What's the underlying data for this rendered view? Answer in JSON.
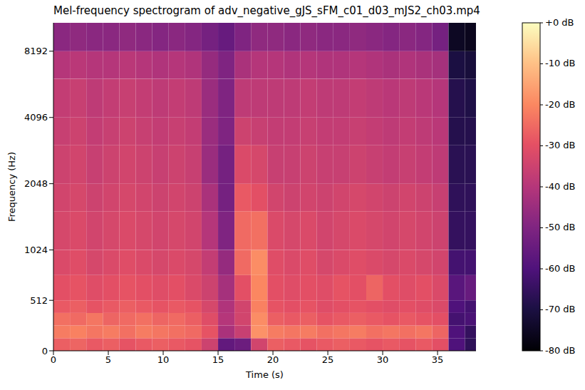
{
  "chart_data": {
    "type": "heatmap",
    "title": "Mel-frequency spectrogram of adv_negative_gJS_sFM_c01_d03_mJS2_ch03.mp4",
    "x_label": "Time (s)",
    "y_label": "Frequency (Hz)",
    "xlim": [
      0,
      38.5
    ],
    "xticks": [
      0,
      5,
      10,
      15,
      20,
      25,
      30,
      35
    ],
    "ylim": [
      0,
      11025
    ],
    "yticks": [
      0,
      512,
      1024,
      2048,
      4096,
      8192
    ],
    "x_edges": [
      0,
      1.5,
      3,
      4.5,
      6,
      7.5,
      9,
      10.5,
      12,
      13.5,
      15,
      16.5,
      18,
      19.5,
      21,
      22.5,
      24,
      25.5,
      27,
      28.5,
      30,
      31.5,
      33,
      34.5,
      36,
      37.5,
      38.5
    ],
    "y_edges": [
      0,
      128,
      256,
      384,
      512,
      768,
      1024,
      1536,
      2048,
      3072,
      4096,
      6144,
      8192,
      11025
    ],
    "cells": [
      [
        -27,
        -26,
        -28,
        -27,
        -29,
        -28,
        -27,
        -28,
        -29,
        -35,
        -56,
        -54,
        -34,
        -27,
        -28,
        -29,
        -28,
        -27,
        -28,
        -29,
        -28,
        -29,
        -28,
        -30,
        -60,
        -66
      ],
      [
        -22,
        -21,
        -23,
        -22,
        -24,
        -22,
        -23,
        -24,
        -25,
        -29,
        -42,
        -36,
        -18,
        -22,
        -23,
        -22,
        -24,
        -23,
        -22,
        -24,
        -23,
        -24,
        -23,
        -26,
        -60,
        -65
      ],
      [
        -24,
        -25,
        -23,
        -26,
        -25,
        -24,
        -26,
        -25,
        -27,
        -31,
        -40,
        -34,
        -19,
        -27,
        -28,
        -27,
        -29,
        -28,
        -27,
        -28,
        -29,
        -28,
        -29,
        -30,
        -62,
        -61
      ],
      [
        -28,
        -27,
        -29,
        -28,
        -27,
        -28,
        -29,
        -28,
        -29,
        -33,
        -41,
        -34,
        -21,
        -29,
        -30,
        -29,
        -31,
        -30,
        -29,
        -30,
        -31,
        -30,
        -31,
        -32,
        -60,
        -62
      ],
      [
        -30,
        -29,
        -31,
        -30,
        -29,
        -30,
        -31,
        -30,
        -32,
        -35,
        -43,
        -30,
        -20,
        -30,
        -31,
        -30,
        -31,
        -29,
        -30,
        -26,
        -30,
        -31,
        -30,
        -32,
        -58,
        -55
      ],
      [
        -32,
        -31,
        -33,
        -32,
        -31,
        -32,
        -33,
        -32,
        -33,
        -37,
        -46,
        -25,
        -19,
        -31,
        -32,
        -31,
        -33,
        -32,
        -31,
        -32,
        -33,
        -32,
        -33,
        -34,
        -62,
        -62
      ],
      [
        -33,
        -32,
        -34,
        -33,
        -32,
        -33,
        -34,
        -33,
        -34,
        -40,
        -50,
        -25,
        -24,
        -32,
        -33,
        -32,
        -34,
        -33,
        -32,
        -33,
        -34,
        -33,
        -34,
        -35,
        -65,
        -65
      ],
      [
        -34,
        -33,
        -35,
        -34,
        -33,
        -34,
        -35,
        -34,
        -35,
        -42,
        -52,
        -28,
        -30,
        -34,
        -35,
        -34,
        -35,
        -34,
        -33,
        -34,
        -35,
        -34,
        -35,
        -36,
        -66,
        -66
      ],
      [
        -35,
        -34,
        -36,
        -35,
        -34,
        -35,
        -36,
        -35,
        -36,
        -45,
        -52,
        -32,
        -33,
        -36,
        -36,
        -35,
        -36,
        -36,
        -35,
        -36,
        -37,
        -36,
        -37,
        -38,
        -67,
        -67
      ],
      [
        -36,
        -35,
        -37,
        -36,
        -35,
        -36,
        -37,
        -36,
        -37,
        -45,
        -50,
        -35,
        -36,
        -37,
        -37,
        -36,
        -37,
        -37,
        -36,
        -37,
        -38,
        -37,
        -38,
        -39,
        -68,
        -68
      ],
      [
        -37,
        -36,
        -38,
        -37,
        -36,
        -37,
        -38,
        -37,
        -38,
        -45,
        -50,
        -38,
        -38,
        -38,
        -38,
        -37,
        -38,
        -38,
        -37,
        -38,
        -39,
        -38,
        -39,
        -40,
        -68,
        -69
      ],
      [
        -40,
        -39,
        -40,
        -40,
        -39,
        -40,
        -41,
        -40,
        -41,
        -46,
        -50,
        -42,
        -40,
        -40,
        -41,
        -40,
        -41,
        -41,
        -40,
        -41,
        -42,
        -41,
        -42,
        -43,
        -70,
        -71
      ],
      [
        -48,
        -47,
        -48,
        -48,
        -47,
        -48,
        -49,
        -48,
        -49,
        -52,
        -55,
        -50,
        -47,
        -47,
        -48,
        -47,
        -48,
        -48,
        -47,
        -48,
        -49,
        -48,
        -49,
        -52,
        -75,
        -76
      ]
    ],
    "colorbar": {
      "lim": [
        -80,
        0
      ],
      "ticks": [
        {
          "value": 0,
          "label": "+0 dB"
        },
        {
          "value": -10,
          "label": "-10 dB"
        },
        {
          "value": -20,
          "label": "-20 dB"
        },
        {
          "value": -30,
          "label": "-30 dB"
        },
        {
          "value": -40,
          "label": "-40 dB"
        },
        {
          "value": -50,
          "label": "-50 dB"
        },
        {
          "value": -60,
          "label": "-60 dB"
        },
        {
          "value": -70,
          "label": "-70 dB"
        },
        {
          "value": -80,
          "label": "-80 dB"
        }
      ]
    }
  }
}
